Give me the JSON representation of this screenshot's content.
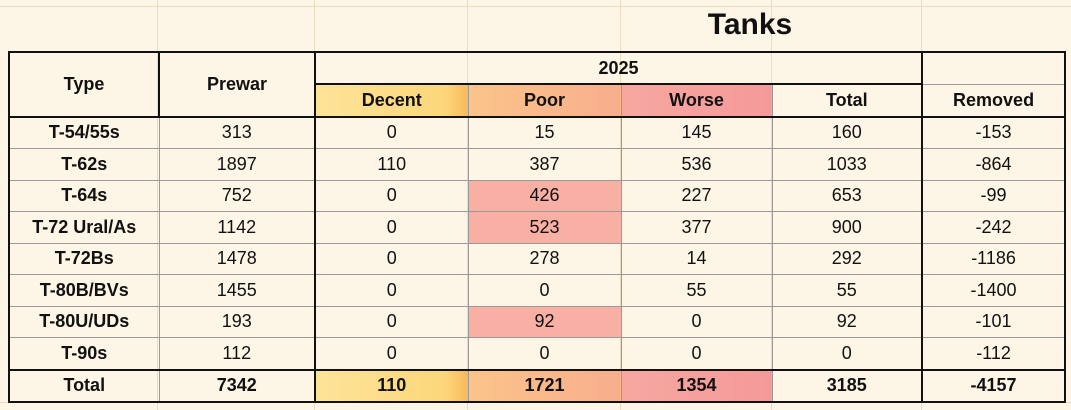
{
  "title": "Tanks",
  "year_header": "2025",
  "columns": {
    "type": "Type",
    "prewar": "Prewar",
    "decent": "Decent",
    "poor": "Poor",
    "worse": "Worse",
    "total": "Total",
    "removed": "Removed"
  },
  "rows": [
    {
      "type": "T-54/55s",
      "prewar": "313",
      "decent": "0",
      "poor": "15",
      "worse": "145",
      "total": "160",
      "removed": "-153"
    },
    {
      "type": "T-62s",
      "prewar": "1897",
      "decent": "110",
      "poor": "387",
      "worse": "536",
      "total": "1033",
      "removed": "-864"
    },
    {
      "type": "T-64s",
      "prewar": "752",
      "decent": "0",
      "poor": "426",
      "worse": "227",
      "total": "653",
      "removed": "-99"
    },
    {
      "type": "T-72 Ural/As",
      "prewar": "1142",
      "decent": "0",
      "poor": "523",
      "worse": "377",
      "total": "900",
      "removed": "-242"
    },
    {
      "type": "T-72Bs",
      "prewar": "1478",
      "decent": "0",
      "poor": "278",
      "worse": "14",
      "total": "292",
      "removed": "-1186"
    },
    {
      "type": "T-80B/BVs",
      "prewar": "1455",
      "decent": "0",
      "poor": "0",
      "worse": "55",
      "total": "55",
      "removed": "-1400"
    },
    {
      "type": "T-80U/UDs",
      "prewar": "193",
      "decent": "0",
      "poor": "92",
      "worse": "0",
      "total": "92",
      "removed": "-101"
    },
    {
      "type": "T-90s",
      "prewar": "112",
      "decent": "0",
      "poor": "0",
      "worse": "0",
      "total": "0",
      "removed": "-112"
    }
  ],
  "totals": {
    "type": "Total",
    "prewar": "7342",
    "decent": "110",
    "poor": "1721",
    "worse": "1354",
    "total": "3185",
    "removed": "-4157"
  },
  "colors": {
    "background": "#fdf6e6",
    "decent": "#fcd77a",
    "poor": "#f8ae8c",
    "worse": "#f59a9a",
    "highlight": "#f7b0a3"
  }
}
